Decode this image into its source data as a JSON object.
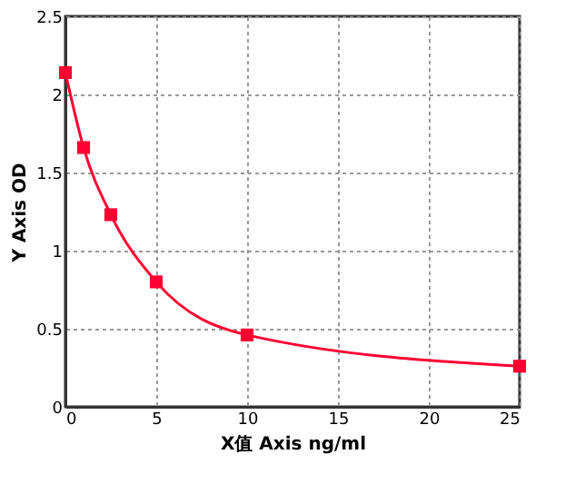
{
  "chart_data": {
    "type": "line",
    "xlabel": "X值 Axis ng/ml",
    "ylabel": "Y Axis OD",
    "x": [
      0,
      1,
      2.5,
      5,
      10,
      25
    ],
    "series": [
      {
        "color": "#ff0033",
        "values": [
          2.14,
          1.66,
          1.23,
          0.8,
          0.46,
          0.26
        ]
      }
    ],
    "xlim": [
      0,
      25
    ],
    "xticks": [
      0,
      5,
      10,
      15,
      20,
      25
    ],
    "ylim": [
      0,
      2.5
    ],
    "yticks": [
      0,
      0.5,
      1,
      1.5,
      2,
      2.5
    ],
    "grid": true,
    "marker": "square",
    "line_style": "solid"
  }
}
